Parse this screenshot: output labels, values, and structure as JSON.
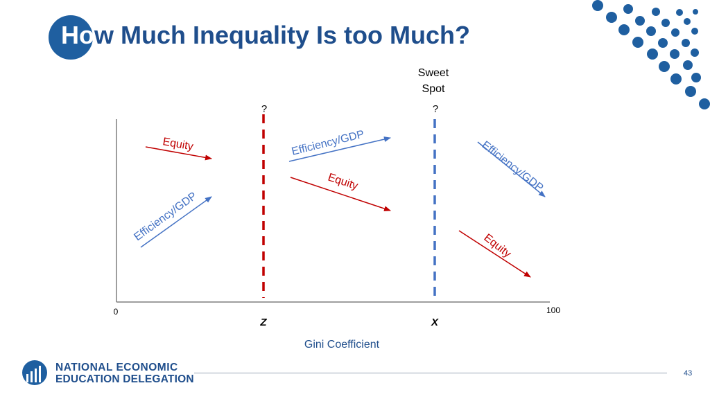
{
  "title": {
    "first": "Ho",
    "rest": "w Much Inequality Is too Much?"
  },
  "diagram": {
    "sweet_spot_line1": "Sweet",
    "sweet_spot_line2": "Spot",
    "z_question": "?",
    "x_question": "?",
    "axis_start": "0",
    "axis_end": "100",
    "z_label": "Z",
    "x_label": "X",
    "x_axis_title": "Gini Coefficient",
    "arrows": {
      "left_equity": "Equity",
      "left_efficiency": "Efficiency/GDP",
      "mid_efficiency": "Efficiency/GDP",
      "mid_equity": "Equity",
      "right_efficiency": "Efficiency/GDP",
      "right_equity": "Equity"
    },
    "colors": {
      "equity": "#c00000",
      "efficiency": "#4472c4",
      "z_line": "#c00000",
      "x_line": "#4472c4"
    }
  },
  "footer": {
    "org_line1": "NATIONAL ECONOMIC",
    "org_line2": "EDUCATION DELEGATION",
    "page_number": "43"
  }
}
